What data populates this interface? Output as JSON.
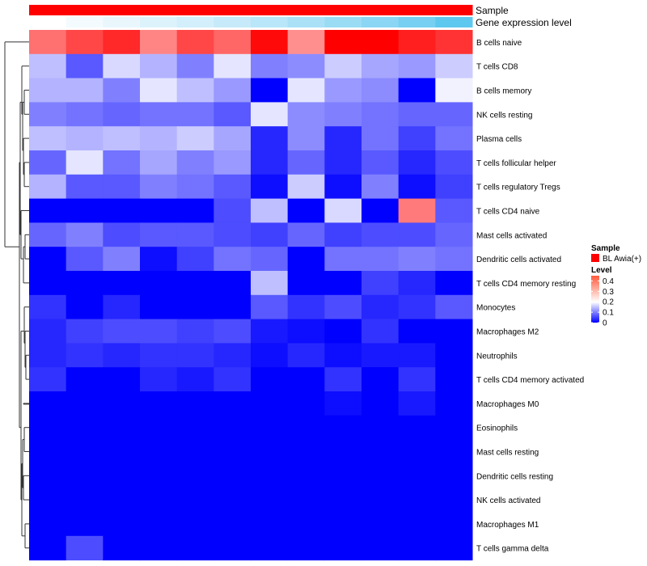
{
  "chart_data": {
    "type": "heatmap",
    "annotation_tracks": [
      {
        "label": "Sample",
        "colors": [
          "#ff0000",
          "#ff0000",
          "#ff0000",
          "#ff0000",
          "#ff0000",
          "#ff0000",
          "#ff0000",
          "#ff0000",
          "#ff0000",
          "#ff0000",
          "#ff0000",
          "#ff0000"
        ]
      },
      {
        "label": "Gene expression level",
        "colors": [
          "#ffffff",
          "#f4fbfe",
          "#e9f7fd",
          "#ddf3fc",
          "#d2effb",
          "#c6eaf9",
          "#b9e6f8",
          "#aae1f7",
          "#9bdcf5",
          "#8ad6f4",
          "#77d0f2",
          "#5fc8ef"
        ]
      }
    ],
    "rows": [
      "B cells naive",
      "T cells CD8",
      "B cells memory",
      "NK cells resting",
      "Plasma cells",
      "T cells follicular helper",
      "T cells regulatory  Tregs",
      "T cells CD4 naive",
      "Mast cells activated",
      "Dendritic cells activated",
      "T cells CD4 memory resting",
      "Monocytes",
      "Macrophages M2",
      "Neutrophils",
      "T cells CD4 memory activated",
      "Macrophages M0",
      "Eosinophils",
      "Mast cells resting",
      "Dendritic cells resting",
      "NK cells activated",
      "Macrophages M1",
      "T cells gamma delta"
    ],
    "n_columns": 12,
    "values": [
      [
        0.34,
        0.38,
        0.41,
        0.32,
        0.38,
        0.35,
        0.44,
        0.31,
        0.45,
        0.45,
        0.42,
        0.4
      ],
      [
        0.15,
        0.07,
        0.17,
        0.14,
        0.1,
        0.18,
        0.1,
        0.11,
        0.16,
        0.13,
        0.12,
        0.16
      ],
      [
        0.14,
        0.14,
        0.1,
        0.18,
        0.15,
        0.12,
        0.0,
        0.18,
        0.12,
        0.11,
        0.0,
        0.19
      ],
      [
        0.1,
        0.09,
        0.08,
        0.09,
        0.09,
        0.07,
        0.18,
        0.11,
        0.1,
        0.09,
        0.08,
        0.08
      ],
      [
        0.15,
        0.14,
        0.15,
        0.14,
        0.16,
        0.13,
        0.03,
        0.11,
        0.03,
        0.09,
        0.05,
        0.09
      ],
      [
        0.08,
        0.18,
        0.09,
        0.13,
        0.1,
        0.12,
        0.03,
        0.08,
        0.03,
        0.07,
        0.03,
        0.06
      ],
      [
        0.14,
        0.07,
        0.07,
        0.1,
        0.09,
        0.07,
        0.01,
        0.16,
        0.01,
        0.1,
        0.01,
        0.05
      ],
      [
        0.0,
        0.0,
        0.0,
        0.0,
        0.0,
        0.06,
        0.15,
        0.0,
        0.17,
        0.0,
        0.33,
        0.07
      ],
      [
        0.08,
        0.1,
        0.06,
        0.07,
        0.07,
        0.06,
        0.05,
        0.08,
        0.05,
        0.06,
        0.06,
        0.08
      ],
      [
        0.0,
        0.07,
        0.1,
        0.01,
        0.05,
        0.09,
        0.08,
        0.0,
        0.09,
        0.09,
        0.1,
        0.09
      ],
      [
        0.0,
        0.0,
        0.0,
        0.0,
        0.0,
        0.0,
        0.15,
        0.0,
        0.0,
        0.05,
        0.03,
        0.0
      ],
      [
        0.04,
        0.0,
        0.03,
        0.0,
        0.0,
        0.0,
        0.07,
        0.04,
        0.06,
        0.03,
        0.04,
        0.07
      ],
      [
        0.03,
        0.05,
        0.06,
        0.06,
        0.05,
        0.06,
        0.02,
        0.01,
        0.0,
        0.04,
        0.0,
        0.0
      ],
      [
        0.03,
        0.04,
        0.03,
        0.04,
        0.04,
        0.03,
        0.01,
        0.03,
        0.01,
        0.02,
        0.02,
        0.0
      ],
      [
        0.04,
        0.0,
        0.0,
        0.03,
        0.02,
        0.04,
        0.0,
        0.0,
        0.04,
        0.0,
        0.04,
        0.0
      ],
      [
        0.0,
        0.0,
        0.0,
        0.0,
        0.0,
        0.0,
        0.0,
        0.0,
        0.01,
        0.0,
        0.02,
        0.0
      ],
      [
        0.0,
        0.0,
        0.0,
        0.0,
        0.0,
        0.0,
        0.0,
        0.0,
        0.0,
        0.0,
        0.0,
        0.0
      ],
      [
        0.0,
        0.0,
        0.0,
        0.0,
        0.0,
        0.0,
        0.0,
        0.0,
        0.0,
        0.0,
        0.0,
        0.0
      ],
      [
        0.0,
        0.0,
        0.0,
        0.0,
        0.0,
        0.0,
        0.0,
        0.0,
        0.0,
        0.0,
        0.0,
        0.0
      ],
      [
        0.0,
        0.0,
        0.0,
        0.0,
        0.0,
        0.0,
        0.0,
        0.0,
        0.0,
        0.0,
        0.0,
        0.0
      ],
      [
        0.0,
        0.0,
        0.0,
        0.0,
        0.0,
        0.0,
        0.0,
        0.0,
        0.0,
        0.0,
        0.0,
        0.0
      ],
      [
        0.0,
        0.06,
        0.0,
        0.0,
        0.0,
        0.0,
        0.0,
        0.0,
        0.0,
        0.0,
        0.0,
        0.0
      ]
    ],
    "color_scale": {
      "min": 0,
      "mid": 0.2,
      "max": 0.45,
      "low_color": "#0000ff",
      "mid_color": "#ffffff",
      "high_color": "#ff0000"
    },
    "legend": {
      "sample_title": "Sample",
      "sample_items": [
        {
          "label": "BL Awia(+)",
          "color": "#ff0000"
        }
      ],
      "level_title": "Level",
      "level_ticks": [
        "0.4",
        "0.3",
        "0.2",
        "0.1",
        "0"
      ],
      "level_tick_values": [
        0.4,
        0.3,
        0.2,
        0.1,
        0
      ],
      "placement": "right"
    },
    "dendrogram": {
      "side": "left"
    }
  }
}
